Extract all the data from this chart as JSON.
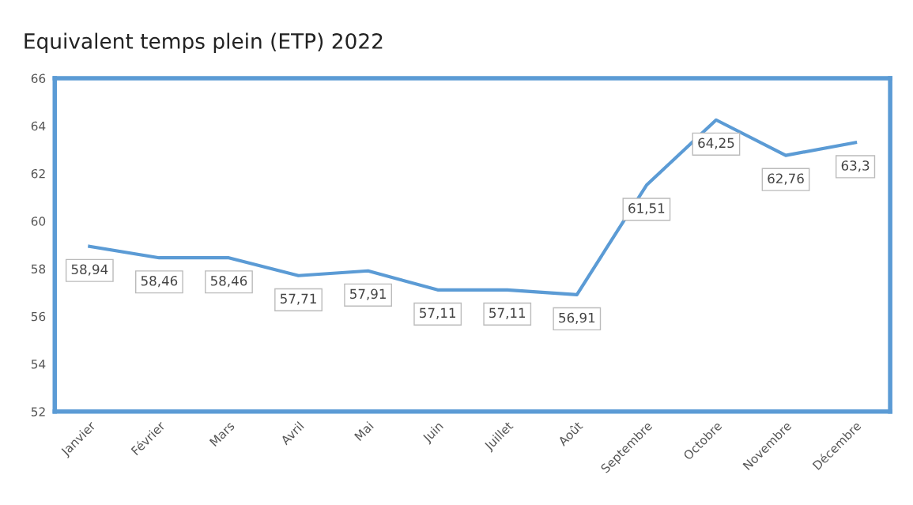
{
  "chart_data": {
    "type": "line",
    "title": "Equivalent temps plein (ETP) 2022",
    "categories": [
      "Janvier",
      "Février",
      "Mars",
      "Avril",
      "Mai",
      "Juin",
      "Juillet",
      "Août",
      "Septembre",
      "Octobre",
      "Novembre",
      "Décembre"
    ],
    "series": [
      {
        "color": "#5b9bd5",
        "values": [
          58.94,
          58.46,
          58.46,
          57.71,
          57.91,
          57.11,
          57.11,
          56.91,
          61.51,
          64.25,
          62.76,
          63.3
        ],
        "value_labels": [
          "58,94",
          "58,46",
          "58,46",
          "57,71",
          "57,91",
          "57,11",
          "57,11",
          "56,91",
          "61,51",
          "64,25",
          "62,76",
          "63,3"
        ]
      }
    ],
    "ylim": [
      52,
      66
    ],
    "yticks": [
      52,
      54,
      56,
      58,
      60,
      62,
      64,
      66
    ],
    "grid": false,
    "marker": "none",
    "line_style": "solid"
  }
}
